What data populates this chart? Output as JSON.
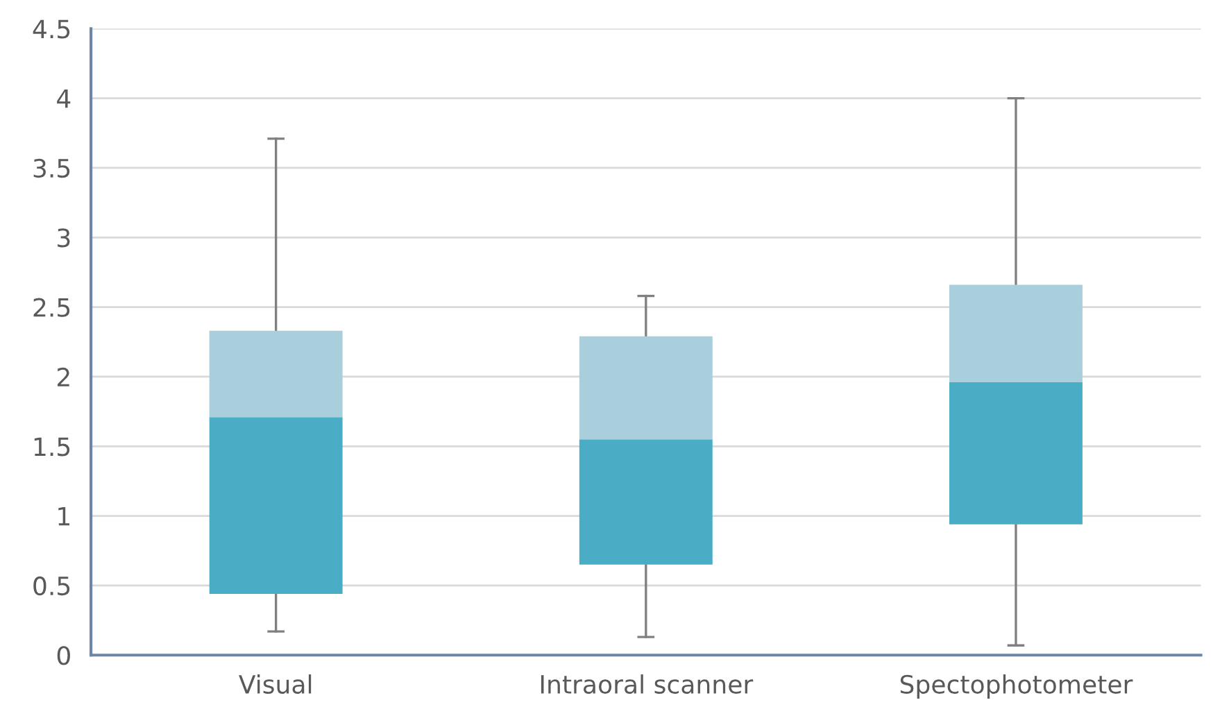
{
  "chart_data": {
    "type": "box",
    "categories": [
      "Visual",
      "Intraoral scanner",
      "Spectophotometer"
    ],
    "boxes": [
      {
        "low": 0.17,
        "q1": 0.44,
        "median": 1.71,
        "q3": 2.33,
        "high": 3.71
      },
      {
        "low": 0.13,
        "q1": 0.65,
        "median": 1.55,
        "q3": 2.29,
        "high": 2.58
      },
      {
        "low": 0.07,
        "q1": 0.94,
        "median": 1.96,
        "q3": 2.66,
        "high": 4.0
      }
    ],
    "colors": [
      [
        "#4bacc6",
        "#a9cedc"
      ],
      [
        "#4bacc6",
        "#a9cedc"
      ],
      [
        "#4bacc6",
        "#a9cedc"
      ]
    ],
    "ylim": [
      0,
      4.5
    ],
    "yticks": [
      0,
      0.5,
      1,
      1.5,
      2,
      2.5,
      3,
      3.5,
      4,
      4.5
    ],
    "grid": "y"
  }
}
